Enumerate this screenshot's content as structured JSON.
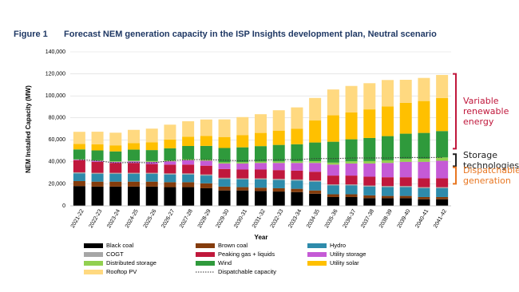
{
  "chart_data": {
    "type": "stacked_bar",
    "figure_label": "Figure 1",
    "title": "Forecast NEM generation capacity in the ISP Insights development plan, Neutral scenario",
    "y_label": "NEM Installed Capacity (MW)",
    "x_label": "Year",
    "categories": [
      "2021-22",
      "2022-23",
      "2023-24",
      "2024-25",
      "2025-26",
      "2026-27",
      "2027-28",
      "2028-29",
      "2029-30",
      "2030-31",
      "2031-32",
      "2032-33",
      "2033-34",
      "2034-35",
      "2035-36",
      "2036-37",
      "2037-38",
      "2038-39",
      "2039-40",
      "2040-41",
      "2041-42"
    ],
    "ylim": [
      0,
      140000
    ],
    "yticks": [
      0,
      {
        "value": 20000,
        "label": "20,000"
      },
      {
        "value": 40000,
        "label": "40,000"
      },
      {
        "value": 60000,
        "label": "60,000"
      },
      {
        "value": 80000,
        "label": "80,000"
      },
      {
        "value": 100000,
        "label": "100,000"
      },
      {
        "value": 120000,
        "label": "120,000"
      },
      {
        "value": 140000,
        "label": "140,000"
      }
    ],
    "series": [
      {
        "name": "Black coal",
        "color": "#000000",
        "values": [
          18000,
          17500,
          17500,
          17500,
          17500,
          17000,
          17000,
          16000,
          14000,
          14000,
          13500,
          13000,
          12500,
          11000,
          8000,
          8000,
          7000,
          7000,
          7000,
          6000,
          6000
        ]
      },
      {
        "name": "Brown coal",
        "color": "#843c0c",
        "values": [
          4500,
          4500,
          4500,
          4500,
          4500,
          4500,
          4500,
          4500,
          3500,
          3000,
          3000,
          3000,
          3000,
          3000,
          2500,
          2500,
          2500,
          2000,
          2000,
          2000,
          2000
        ]
      },
      {
        "name": "Hydro",
        "color": "#2e8bab",
        "values": [
          7000,
          7000,
          7000,
          7000,
          7000,
          7000,
          7000,
          7000,
          7000,
          7000,
          7500,
          7500,
          7500,
          8000,
          8000,
          8000,
          8000,
          8000,
          8000,
          8000,
          8000
        ]
      },
      {
        "name": "COGT",
        "color": "#a6a6a6",
        "values": [
          1000,
          1000,
          1000,
          1000,
          1000,
          1000,
          1000,
          1000,
          1000,
          1000,
          1000,
          1000,
          1000,
          1000,
          1000,
          1000,
          1000,
          1000,
          1000,
          1000,
          1000
        ]
      },
      {
        "name": "Peaking gas + liquids",
        "color": "#c0183c",
        "values": [
          11000,
          10000,
          9000,
          9000,
          8000,
          8000,
          8000,
          8000,
          8000,
          8000,
          8000,
          8000,
          8000,
          8000,
          8000,
          8000,
          8000,
          8000,
          8000,
          8000,
          8000
        ]
      },
      {
        "name": "Utility storage",
        "color": "#c55ad6",
        "values": [
          500,
          1000,
          1000,
          1500,
          2000,
          3000,
          4000,
          4500,
          5000,
          5500,
          6000,
          6500,
          7000,
          8000,
          10000,
          11000,
          12000,
          13000,
          14000,
          15000,
          16000
        ]
      },
      {
        "name": "Distributed storage",
        "color": "#92d050",
        "values": [
          300,
          400,
          500,
          600,
          700,
          800,
          900,
          1000,
          1100,
          1200,
          1300,
          1400,
          1500,
          1600,
          1800,
          2000,
          2200,
          2400,
          2600,
          2800,
          3000
        ]
      },
      {
        "name": "Wind",
        "color": "#2f9a3c",
        "values": [
          9000,
          9000,
          9000,
          10000,
          10000,
          11000,
          12000,
          12500,
          13000,
          13500,
          14000,
          15000,
          15500,
          17000,
          19000,
          20000,
          21000,
          22000,
          23000,
          23500,
          24000
        ]
      },
      {
        "name": "Utility solar",
        "color": "#ffc000",
        "values": [
          5000,
          5500,
          5500,
          6000,
          7000,
          8000,
          8500,
          9000,
          10000,
          11000,
          12000,
          13000,
          14000,
          20000,
          24000,
          24500,
          26000,
          27000,
          28000,
          29000,
          30000
        ]
      },
      {
        "name": "Rooftop PV",
        "color": "#ffd980",
        "values": [
          11000,
          11500,
          11500,
          12000,
          12500,
          13500,
          14000,
          15000,
          16000,
          16500,
          17000,
          18500,
          19500,
          20500,
          23500,
          24000,
          23800,
          24000,
          21000,
          21000,
          21000
        ]
      },
      {
        "name": "Dispatchable capacity",
        "color": "#333333",
        "type": "line",
        "values": [
          42000,
          41000,
          39000,
          39500,
          39000,
          41000,
          42000,
          42000,
          41500,
          41000,
          41500,
          42000,
          42000,
          43000,
          43000,
          43500,
          43500,
          43500,
          44000,
          44000,
          44000
        ]
      }
    ],
    "annotations": [
      {
        "text": "Variable renewable energy",
        "color": "#c0183c",
        "span": [
          52000,
          120000
        ]
      },
      {
        "text": "Storage technologies",
        "color": "#222222",
        "span": [
          36000,
          47000
        ]
      },
      {
        "text": "Dispatchable generation",
        "color": "#e87722",
        "span": [
          20000,
          35000
        ]
      }
    ]
  }
}
